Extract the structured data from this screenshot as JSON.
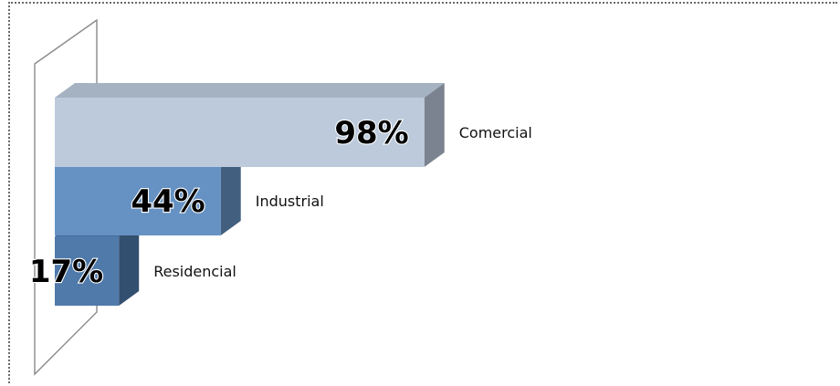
{
  "chart_data": {
    "type": "bar",
    "orientation": "horizontal",
    "three_d": true,
    "categories": [
      "Comercial",
      "Industrial",
      "Residencial"
    ],
    "values": [
      98,
      44,
      17
    ],
    "data_labels": [
      "98%",
      "44%",
      "17%"
    ],
    "xlim": [
      0,
      100
    ],
    "colors": {
      "Comercial": "#bccadc",
      "Industrial": "#6592c3",
      "Residencial": "#4f7aaa"
    },
    "grid": false,
    "legend": "none",
    "title": "",
    "xlabel": "",
    "ylabel": ""
  }
}
